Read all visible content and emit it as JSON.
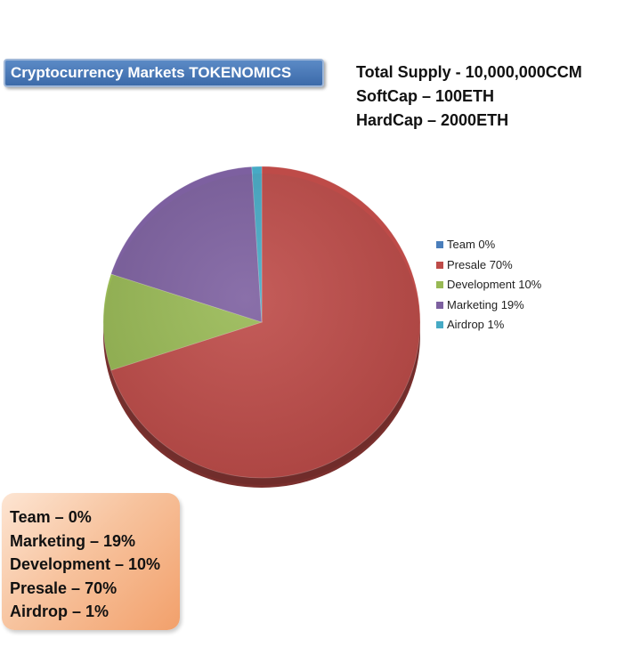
{
  "header": {
    "title": "Cryptocurrency Markets TOKENOMICS"
  },
  "supply": {
    "total": "Total Supply - 10,000,000CCM",
    "softcap": "SoftCap – 100ETH",
    "hardcap": "HardCap – 2000ETH"
  },
  "chart_data": {
    "type": "pie",
    "title": "",
    "categories": [
      "Team",
      "Presale",
      "Development",
      "Marketing",
      "Airdrop"
    ],
    "values": [
      0,
      70,
      10,
      19,
      1
    ],
    "legend": [
      "Team 0%",
      "Presale 70%",
      "Development 10%",
      "Marketing 19%",
      "Airdrop 1%"
    ],
    "colors": [
      "#4a7ebb",
      "#be4b48",
      "#98b954",
      "#7d60a0",
      "#46aac5"
    ],
    "legend_placement": "right"
  },
  "summary": {
    "lines": [
      "Team – 0%",
      "Marketing – 19%",
      "Development – 10%",
      "Presale – 70%",
      "Airdrop – 1%"
    ]
  }
}
